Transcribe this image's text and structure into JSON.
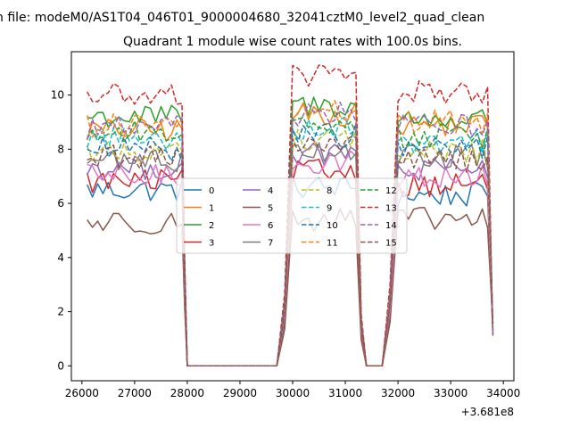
{
  "chart_data": {
    "type": "line",
    "suptitle": "n file: modeM0/AS1T04_046T01_9000004680_32041cztM0_level2_quad_clean",
    "title": "Quadrant 1 module wise count rates with 100.0s bins.",
    "xlabel": "",
    "ylabel": "",
    "x_offset_label": "+3.681e8",
    "xlim": [
      25800,
      34200
    ],
    "ylim": [
      -0.55,
      11.6
    ],
    "xticks": [
      "26000",
      "27000",
      "28000",
      "29000",
      "30000",
      "31000",
      "32000",
      "33000",
      "34000"
    ],
    "yticks": [
      "0",
      "2",
      "4",
      "6",
      "8",
      "10"
    ],
    "legend_position": "center",
    "segments": [
      {
        "start": 26100,
        "end": 27900
      },
      {
        "start": 30000,
        "end": 31200
      },
      {
        "start": 32000,
        "end": 33700
      }
    ],
    "zero_gaps": [
      {
        "start": 28000,
        "end": 29700
      },
      {
        "start": 31400,
        "end": 31700
      }
    ],
    "series": [
      {
        "name": "0",
        "color": "#1f77b4",
        "dash": "solid",
        "levels": [
          6.5,
          6.6,
          6.3
        ]
      },
      {
        "name": "1",
        "color": "#ff7f0e",
        "dash": "solid",
        "levels": [
          8.7,
          9.3,
          8.9
        ]
      },
      {
        "name": "2",
        "color": "#2ca02c",
        "dash": "solid",
        "levels": [
          9.2,
          9.6,
          9.1
        ]
      },
      {
        "name": "3",
        "color": "#d62728",
        "dash": "solid",
        "levels": [
          6.8,
          7.2,
          6.7
        ]
      },
      {
        "name": "4",
        "color": "#9467bd",
        "dash": "solid",
        "levels": [
          7.3,
          7.8,
          7.2
        ]
      },
      {
        "name": "5",
        "color": "#8c564b",
        "dash": "solid",
        "levels": [
          5.3,
          5.4,
          5.4
        ]
      },
      {
        "name": "6",
        "color": "#e377c2",
        "dash": "solid",
        "levels": [
          7.0,
          7.5,
          7.0
        ]
      },
      {
        "name": "7",
        "color": "#7f7f7f",
        "dash": "solid",
        "levels": [
          7.6,
          8.0,
          7.7
        ]
      },
      {
        "name": "8",
        "color": "#bcbd22",
        "dash": "dashed",
        "levels": [
          7.9,
          8.4,
          7.9
        ]
      },
      {
        "name": "9",
        "color": "#17becf",
        "dash": "dashed",
        "levels": [
          8.4,
          8.8,
          8.3
        ]
      },
      {
        "name": "10",
        "color": "#1f77b4",
        "dash": "dashed",
        "levels": [
          8.0,
          8.5,
          8.1
        ]
      },
      {
        "name": "11",
        "color": "#ff7f0e",
        "dash": "dashed",
        "levels": [
          8.9,
          9.4,
          9.0
        ]
      },
      {
        "name": "12",
        "color": "#2ca02c",
        "dash": "dashed",
        "levels": [
          8.6,
          9.0,
          8.5
        ]
      },
      {
        "name": "13",
        "color": "#d62728",
        "dash": "dashed",
        "levels": [
          10.0,
          10.7,
          10.1
        ]
      },
      {
        "name": "14",
        "color": "#9467bd",
        "dash": "dashed",
        "levels": [
          8.8,
          9.3,
          8.9
        ]
      },
      {
        "name": "15",
        "color": "#8c564b",
        "dash": "dashed",
        "levels": [
          7.7,
          8.2,
          7.6
        ]
      }
    ]
  }
}
